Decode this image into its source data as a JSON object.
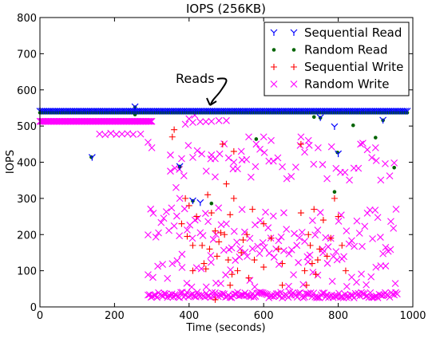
{
  "chart_data": {
    "type": "scatter",
    "title": "IOPS (256KB)",
    "xlabel": "Time (seconds)",
    "ylabel": "IOPS",
    "xlim": [
      0,
      1000
    ],
    "ylim": [
      0,
      800
    ],
    "xticks": [
      0,
      200,
      400,
      600,
      800,
      1000
    ],
    "yticks": [
      0,
      100,
      200,
      300,
      400,
      500,
      600,
      700,
      800
    ],
    "grid": false,
    "legend_position": "top-right",
    "annotations": [
      {
        "text": "Reads",
        "target": [
          455,
          540
        ]
      }
    ],
    "series": [
      {
        "name": "Sequential Read",
        "marker": "tri_down",
        "color": "#0000ff",
        "dense_band": {
          "x_start": 0,
          "x_end": 985,
          "x_step": 5,
          "y": 541
        },
        "points": [
          [
            140,
            413
          ],
          [
            255,
            553
          ],
          [
            375,
            388
          ],
          [
            800,
            423
          ],
          [
            752,
            523
          ],
          [
            790,
            498
          ],
          [
            920,
            516
          ],
          [
            410,
            293
          ],
          [
            430,
            288
          ]
        ]
      },
      {
        "name": "Random Read",
        "marker": "circle",
        "color": "#006400",
        "dense_band": {
          "x_start": 0,
          "x_end": 985,
          "x_step": 5,
          "y": 537
        },
        "points": [
          [
            138,
            414
          ],
          [
            255,
            532
          ],
          [
            255,
            552
          ],
          [
            375,
            388
          ],
          [
            410,
            293
          ],
          [
            460,
            286
          ],
          [
            580,
            464
          ],
          [
            735,
            525
          ],
          [
            752,
            523
          ],
          [
            798,
            427
          ],
          [
            840,
            502
          ],
          [
            790,
            318
          ],
          [
            920,
            516
          ],
          [
            950,
            385
          ],
          [
            900,
            468
          ]
        ]
      },
      {
        "name": "Sequential Write",
        "marker": "plus",
        "color": "#ff0000",
        "points": [
          [
            355,
            470
          ],
          [
            360,
            490
          ],
          [
            395,
            195
          ],
          [
            400,
            280
          ],
          [
            410,
            170
          ],
          [
            420,
            250
          ],
          [
            435,
            170
          ],
          [
            440,
            120
          ],
          [
            445,
            105
          ],
          [
            450,
            310
          ],
          [
            455,
            160
          ],
          [
            460,
            260
          ],
          [
            470,
            210
          ],
          [
            475,
            140
          ],
          [
            480,
            180
          ],
          [
            485,
            205
          ],
          [
            490,
            450
          ],
          [
            495,
            200
          ],
          [
            500,
            340
          ],
          [
            505,
            130
          ],
          [
            510,
            255
          ],
          [
            515,
            90
          ],
          [
            520,
            300
          ],
          [
            530,
            100
          ],
          [
            540,
            150
          ],
          [
            545,
            185
          ],
          [
            555,
            200
          ],
          [
            560,
            80
          ],
          [
            570,
            270
          ],
          [
            575,
            130
          ],
          [
            600,
            230
          ],
          [
            620,
            190
          ],
          [
            640,
            160
          ],
          [
            650,
            120
          ],
          [
            700,
            450
          ],
          [
            710,
            100
          ],
          [
            720,
            200
          ],
          [
            725,
            170
          ],
          [
            730,
            120
          ],
          [
            735,
            270
          ],
          [
            740,
            90
          ],
          [
            745,
            130
          ],
          [
            750,
            160
          ],
          [
            760,
            240
          ],
          [
            770,
            140
          ],
          [
            780,
            190
          ],
          [
            790,
            300
          ],
          [
            800,
            250
          ],
          [
            810,
            170
          ],
          [
            820,
            100
          ],
          [
            470,
            20
          ],
          [
            380,
            230
          ],
          [
            390,
            300
          ],
          [
            410,
            100
          ],
          [
            510,
            60
          ],
          [
            520,
            430
          ],
          [
            600,
            110
          ],
          [
            650,
            60
          ],
          [
            700,
            260
          ],
          [
            715,
            60
          ]
        ]
      },
      {
        "name": "Random Write",
        "marker": "x",
        "color": "#ff00ff",
        "dense_band": {
          "x_start": 0,
          "x_end": 300,
          "x_step": 3,
          "y": 513
        },
        "bands": [
          {
            "x_start": 290,
            "x_end": 960,
            "x_step": 4,
            "y": 33,
            "spread": 8
          },
          {
            "x_start": 290,
            "x_end": 960,
            "x_step": 7,
            "y": 205,
            "spread": 70
          },
          {
            "x_start": 350,
            "x_end": 960,
            "x_step": 12,
            "y": 400,
            "spread": 55
          },
          {
            "x_start": 290,
            "x_end": 960,
            "x_step": 13,
            "y": 110,
            "spread": 55
          }
        ],
        "points": [
          [
            160,
            478
          ],
          [
            175,
            476
          ],
          [
            190,
            480
          ],
          [
            205,
            477
          ],
          [
            220,
            478
          ],
          [
            235,
            479
          ],
          [
            250,
            477
          ],
          [
            270,
            478
          ],
          [
            290,
            455
          ],
          [
            300,
            440
          ],
          [
            350,
            420
          ],
          [
            365,
            330
          ],
          [
            375,
            300
          ],
          [
            380,
            410
          ],
          [
            390,
            505
          ],
          [
            400,
            520
          ],
          [
            410,
            510
          ],
          [
            415,
            530
          ],
          [
            430,
            512
          ],
          [
            445,
            512
          ],
          [
            460,
            513
          ],
          [
            460,
            420
          ],
          [
            470,
            410
          ],
          [
            480,
            515
          ],
          [
            500,
            515
          ],
          [
            520,
            400
          ],
          [
            540,
            430
          ],
          [
            560,
            470
          ],
          [
            580,
            450
          ],
          [
            600,
            470
          ],
          [
            620,
            460
          ],
          [
            700,
            470
          ],
          [
            720,
            460
          ],
          [
            860,
            450
          ],
          [
            900,
            440
          ]
        ]
      }
    ]
  }
}
